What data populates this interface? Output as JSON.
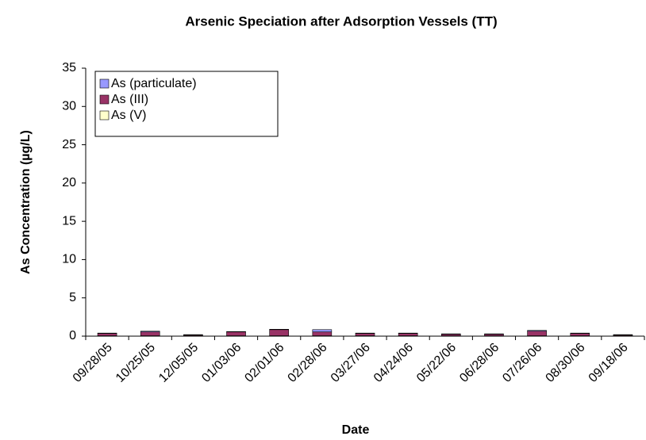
{
  "chart_data": {
    "type": "stacked_bar",
    "title": "Arsenic Speciation after Adsorption Vessels (TT)",
    "x_label": "Date",
    "y_label": "As Concentration (µg/L)",
    "categories": [
      "09/28/05",
      "10/25/05",
      "12/05/05",
      "01/03/06",
      "02/01/06",
      "02/28/06",
      "03/27/06",
      "04/24/06",
      "05/22/06",
      "06/28/06",
      "07/26/06",
      "08/30/06",
      "09/18/06"
    ],
    "series": [
      {
        "name": "As (V)",
        "color": "#ffffcc",
        "values": [
          0.05,
          0.05,
          0.05,
          0.05,
          0.05,
          0.05,
          0.05,
          0.05,
          0.05,
          0.05,
          0.05,
          0.05,
          0.05
        ]
      },
      {
        "name": "As (III)",
        "color": "#993366",
        "values": [
          0.3,
          0.5,
          0.1,
          0.5,
          0.8,
          0.5,
          0.3,
          0.3,
          0.2,
          0.2,
          0.6,
          0.3,
          0.1
        ]
      },
      {
        "name": "As (particulate)",
        "color": "#9999ff",
        "values": [
          0.05,
          0.1,
          0.05,
          0.05,
          0.05,
          0.3,
          0.05,
          0.05,
          0.05,
          0.05,
          0.1,
          0.05,
          0.05
        ]
      }
    ],
    "ylim": [
      0,
      35
    ],
    "yticks": [
      0,
      5,
      10,
      15,
      20,
      25,
      30,
      35
    ],
    "legend": "upper left"
  }
}
